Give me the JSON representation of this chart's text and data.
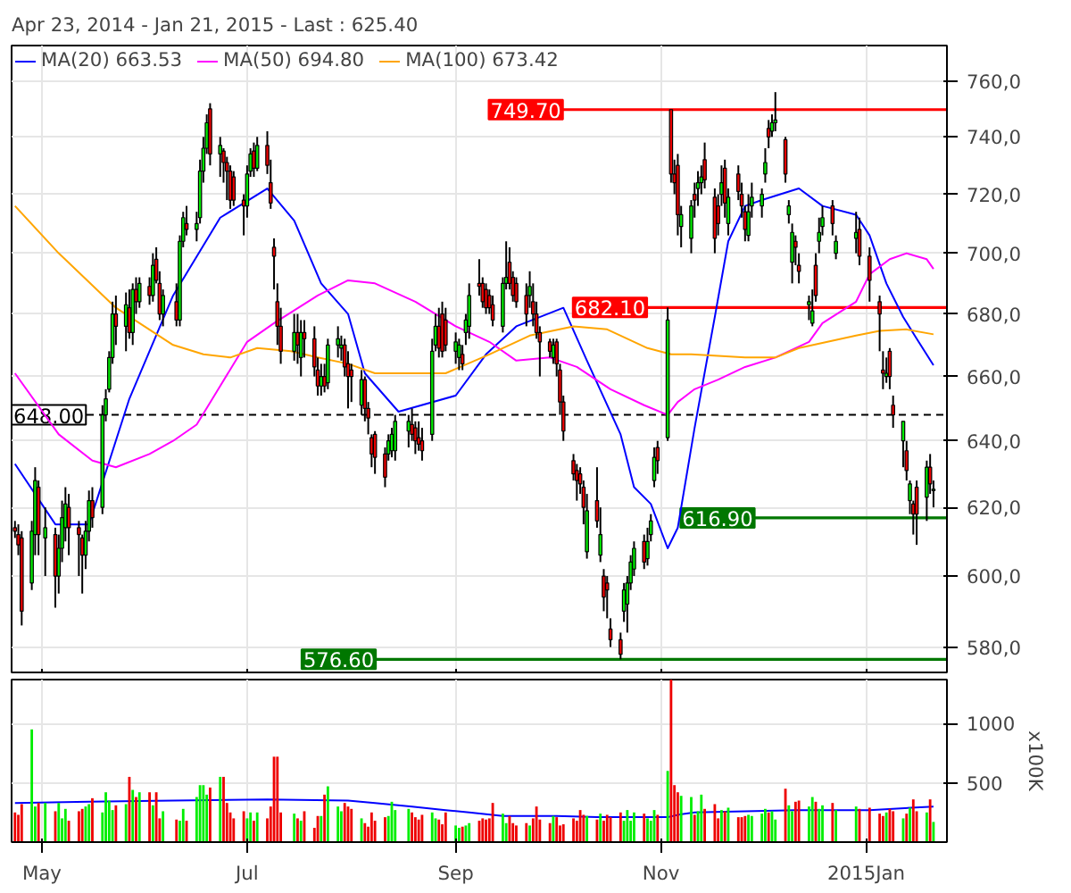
{
  "chart_data": [
    {
      "type": "candlestick",
      "title": "Apr 23, 2014 - Jan 21, 2015 - Last : 625.40",
      "x": [
        "2014-04-23",
        "2014-04-24",
        "2014-04-25",
        "2014-04-28",
        "2014-04-29",
        "2014-04-30",
        "2014-05-02",
        "2014-05-05",
        "2014-05-06",
        "2014-05-07",
        "2014-05-08",
        "2014-05-09",
        "2014-05-12",
        "2014-05-13",
        "2014-05-14",
        "2014-05-15",
        "2014-05-16",
        "2014-05-19",
        "2014-05-20",
        "2014-05-21",
        "2014-05-22",
        "2014-05-23",
        "2014-05-26",
        "2014-05-27",
        "2014-05-28",
        "2014-05-29",
        "2014-05-30",
        "2014-06-02",
        "2014-06-03",
        "2014-06-04",
        "2014-06-05",
        "2014-06-06",
        "2014-06-10",
        "2014-06-11",
        "2014-06-12",
        "2014-06-13",
        "2014-06-16",
        "2014-06-17",
        "2014-06-18",
        "2014-06-19",
        "2014-06-20",
        "2014-06-23",
        "2014-06-24",
        "2014-06-25",
        "2014-06-26",
        "2014-06-27",
        "2014-06-30",
        "2014-07-01",
        "2014-07-02",
        "2014-07-03",
        "2014-07-04",
        "2014-07-07",
        "2014-07-08",
        "2014-07-09",
        "2014-07-10",
        "2014-07-11",
        "2014-07-15",
        "2014-07-16",
        "2014-07-17",
        "2014-07-18",
        "2014-07-21",
        "2014-07-22",
        "2014-07-23",
        "2014-07-24",
        "2014-07-25",
        "2014-07-28",
        "2014-07-29",
        "2014-07-30",
        "2014-07-31",
        "2014-08-01",
        "2014-08-04",
        "2014-08-05",
        "2014-08-06",
        "2014-08-07",
        "2014-08-08",
        "2014-08-11",
        "2014-08-12",
        "2014-08-13",
        "2014-08-14",
        "2014-08-18",
        "2014-08-19",
        "2014-08-20",
        "2014-08-21",
        "2014-08-22",
        "2014-08-25",
        "2014-08-26",
        "2014-08-27",
        "2014-08-28",
        "2014-08-29",
        "2014-09-01",
        "2014-09-02",
        "2014-09-03",
        "2014-09-04",
        "2014-09-05",
        "2014-09-08",
        "2014-09-09",
        "2014-09-10",
        "2014-09-11",
        "2014-09-12",
        "2014-09-15",
        "2014-09-16",
        "2014-09-17",
        "2014-09-18",
        "2014-09-19",
        "2014-09-22",
        "2014-09-23",
        "2014-09-24",
        "2014-09-25",
        "2014-09-26",
        "2014-09-29",
        "2014-09-30",
        "2014-10-01",
        "2014-10-02",
        "2014-10-03",
        "2014-10-06",
        "2014-10-07",
        "2014-10-08",
        "2014-10-09",
        "2014-10-10",
        "2014-10-13",
        "2014-10-14",
        "2014-10-15",
        "2014-10-16",
        "2014-10-17",
        "2014-10-20",
        "2014-10-21",
        "2014-10-22",
        "2014-10-23",
        "2014-10-24",
        "2014-10-27",
        "2014-10-28",
        "2014-10-29",
        "2014-10-30",
        "2014-10-31",
        "2014-11-03",
        "2014-11-04",
        "2014-11-05",
        "2014-11-06",
        "2014-11-07",
        "2014-11-10",
        "2014-11-11",
        "2014-11-12",
        "2014-11-13",
        "2014-11-14",
        "2014-11-17",
        "2014-11-18",
        "2014-11-19",
        "2014-11-20",
        "2014-11-21",
        "2014-11-24",
        "2014-11-25",
        "2014-11-26",
        "2014-11-27",
        "2014-11-28",
        "2014-12-01",
        "2014-12-02",
        "2014-12-03",
        "2014-12-04",
        "2014-12-05",
        "2014-12-08",
        "2014-12-09",
        "2014-12-10",
        "2014-12-11",
        "2014-12-12",
        "2014-12-15",
        "2014-12-16",
        "2014-12-17",
        "2014-12-18",
        "2014-12-19",
        "2014-12-22",
        "2014-12-23",
        "2014-12-29",
        "2014-12-30",
        "2015-01-02",
        "2015-01-05",
        "2015-01-06",
        "2015-01-07",
        "2015-01-08",
        "2015-01-09",
        "2015-01-12",
        "2015-01-13",
        "2015-01-14",
        "2015-01-15",
        "2015-01-16",
        "2015-01-19",
        "2015-01-20",
        "2015-01-21"
      ],
      "ohlc": [
        [
          614,
          616,
          611,
          613
        ],
        [
          612,
          615,
          606,
          609
        ],
        [
          611,
          613,
          586,
          590
        ],
        [
          598,
          616,
          596,
          613
        ],
        [
          612,
          632,
          606,
          628
        ],
        [
          626,
          628,
          606,
          612
        ],
        [
          611,
          620,
          600,
          614
        ],
        [
          612,
          614,
          591,
          600
        ],
        [
          600,
          612,
          595,
          608
        ],
        [
          608,
          622,
          604,
          617
        ],
        [
          614,
          626,
          610,
          621
        ],
        [
          620,
          624,
          606,
          614
        ],
        [
          614,
          616,
          600,
          612
        ],
        [
          611,
          612,
          595,
          606
        ],
        [
          606,
          616,
          602,
          613
        ],
        [
          613,
          625,
          610,
          622
        ],
        [
          622,
          626,
          614,
          617
        ],
        [
          620,
          651,
          618,
          648
        ],
        [
          648,
          656,
          646,
          653
        ],
        [
          656,
          668,
          655,
          666
        ],
        [
          666,
          684,
          664,
          680
        ],
        [
          680,
          686,
          670,
          676
        ],
        [
          676,
          687,
          668,
          683
        ],
        [
          682,
          688,
          672,
          674
        ],
        [
          674,
          690,
          670,
          688
        ],
        [
          688,
          692,
          680,
          684
        ],
        [
          684,
          692,
          682,
          690
        ],
        [
          689,
          692,
          683,
          686
        ],
        [
          686,
          700,
          684,
          696
        ],
        [
          698,
          702,
          690,
          691
        ],
        [
          690,
          694,
          678,
          680
        ],
        [
          680,
          688,
          676,
          686
        ],
        [
          684,
          690,
          676,
          678
        ],
        [
          678,
          706,
          676,
          704
        ],
        [
          704,
          714,
          702,
          712
        ],
        [
          710,
          716,
          706,
          708
        ],
        [
          708,
          714,
          704,
          710
        ],
        [
          712,
          732,
          710,
          728
        ],
        [
          728,
          740,
          724,
          736
        ],
        [
          736,
          748,
          734,
          745
        ],
        [
          750,
          752,
          730,
          734
        ],
        [
          734,
          740,
          726,
          737
        ],
        [
          735,
          736,
          724,
          731
        ],
        [
          731,
          733,
          718,
          728
        ],
        [
          728,
          730,
          715,
          718
        ],
        [
          726,
          728,
          716,
          718
        ],
        [
          718,
          720,
          706,
          716
        ],
        [
          716,
          730,
          712,
          727
        ],
        [
          728,
          736,
          726,
          734
        ],
        [
          735,
          738,
          726,
          729
        ],
        [
          729,
          740,
          728,
          737
        ],
        [
          737,
          742,
          727,
          730
        ],
        [
          724,
          732,
          715,
          717
        ],
        [
          702,
          705,
          688,
          699
        ],
        [
          684,
          690,
          670,
          676
        ],
        [
          676,
          682,
          664,
          668
        ],
        [
          668,
          680,
          665,
          674
        ],
        [
          674,
          680,
          664,
          670
        ],
        [
          666,
          678,
          660,
          674
        ],
        [
          674,
          678,
          666,
          672
        ],
        [
          672,
          676,
          660,
          663
        ],
        [
          662,
          666,
          654,
          657
        ],
        [
          657,
          664,
          654,
          660
        ],
        [
          660,
          664,
          655,
          657
        ],
        [
          658,
          672,
          656,
          670
        ],
        [
          670,
          676,
          666,
          672
        ],
        [
          669,
          673,
          665,
          670
        ],
        [
          670,
          672,
          660,
          663
        ],
        [
          664,
          668,
          650,
          660
        ],
        [
          662,
          664,
          652,
          660
        ],
        [
          651,
          662,
          648,
          659
        ],
        [
          659,
          660,
          646,
          650
        ],
        [
          650,
          652,
          642,
          647
        ],
        [
          641,
          642,
          632,
          636
        ],
        [
          642,
          643,
          630,
          635
        ],
        [
          636,
          638,
          626,
          629
        ],
        [
          636,
          642,
          634,
          640
        ],
        [
          637,
          644,
          635,
          642
        ],
        [
          637,
          648,
          634,
          646
        ],
        [
          643,
          648,
          638,
          646
        ],
        [
          645,
          650,
          640,
          642
        ],
        [
          644,
          646,
          636,
          640
        ],
        [
          641,
          646,
          637,
          639
        ],
        [
          640,
          644,
          634,
          637
        ],
        [
          642,
          672,
          640,
          668
        ],
        [
          670,
          680,
          668,
          676
        ],
        [
          676,
          682,
          666,
          669
        ],
        [
          680,
          684,
          666,
          668
        ],
        [
          678,
          682,
          668,
          670
        ],
        [
          668,
          674,
          664,
          671
        ],
        [
          666,
          672,
          662,
          670
        ],
        [
          667,
          670,
          662,
          664
        ],
        [
          674,
          680,
          670,
          678
        ],
        [
          676,
          690,
          672,
          686
        ],
        [
          690,
          698,
          686,
          689
        ],
        [
          690,
          692,
          682,
          684
        ],
        [
          688,
          690,
          680,
          682
        ],
        [
          686,
          688,
          680,
          682
        ],
        [
          683,
          686,
          676,
          678
        ],
        [
          676,
          692,
          674,
          690
        ],
        [
          690,
          704,
          688,
          692
        ],
        [
          697,
          702,
          688,
          690
        ],
        [
          692,
          694,
          684,
          686
        ],
        [
          690,
          692,
          682,
          684
        ],
        [
          686,
          690,
          676,
          680
        ],
        [
          686,
          694,
          682,
          689
        ],
        [
          684,
          690,
          676,
          680
        ],
        [
          680,
          684,
          672,
          674
        ],
        [
          674,
          676,
          660,
          671
        ],
        [
          671,
          672,
          666,
          668
        ],
        [
          666,
          672,
          664,
          670
        ],
        [
          671,
          672,
          660,
          664
        ],
        [
          662,
          664,
          648,
          652
        ],
        [
          652,
          654,
          640,
          643
        ],
        [
          634,
          636,
          628,
          630
        ],
        [
          631,
          633,
          622,
          628
        ],
        [
          630,
          632,
          624,
          627
        ],
        [
          626,
          628,
          615,
          620
        ],
        [
          607,
          624,
          605,
          619
        ],
        [
          622,
          632,
          614,
          616
        ],
        [
          606,
          620,
          604,
          612
        ],
        [
          600,
          602,
          590,
          594
        ],
        [
          598,
          600,
          588,
          596
        ],
        [
          585,
          588,
          580,
          582
        ],
        [
          582,
          584,
          576.6,
          578
        ],
        [
          590,
          598,
          587,
          596
        ],
        [
          592,
          600,
          584,
          598
        ],
        [
          598,
          606,
          596,
          604
        ],
        [
          602,
          610,
          600,
          608
        ],
        [
          610,
          612,
          602,
          604
        ],
        [
          605,
          614,
          603,
          610
        ],
        [
          612,
          618,
          610,
          616
        ],
        [
          628,
          638,
          626,
          635
        ],
        [
          638,
          640,
          630,
          634
        ],
        [
          641,
          682.1,
          640,
          678
        ],
        [
          749.7,
          749.7,
          724,
          727
        ],
        [
          727,
          732,
          720,
          724
        ],
        [
          730,
          734,
          706,
          713
        ],
        [
          709,
          716,
          702,
          713
        ],
        [
          705,
          718,
          700,
          716
        ],
        [
          720,
          724,
          712,
          718
        ],
        [
          722,
          728,
          716,
          724
        ],
        [
          724,
          730,
          720,
          726
        ],
        [
          732,
          738,
          722,
          725
        ],
        [
          719,
          722,
          700,
          705
        ],
        [
          716,
          720,
          706,
          710
        ],
        [
          720,
          730,
          716,
          724
        ],
        [
          729,
          732,
          712,
          717
        ],
        [
          710,
          722,
          706,
          719
        ],
        [
          727,
          730,
          718,
          721
        ],
        [
          720,
          724,
          712,
          716
        ],
        [
          714,
          716,
          704,
          708
        ],
        [
          706,
          720,
          704,
          714
        ],
        [
          716,
          724,
          712,
          719
        ],
        [
          716,
          722,
          712,
          720
        ],
        [
          727,
          736,
          724,
          731
        ],
        [
          743,
          746,
          736,
          740
        ],
        [
          742,
          748,
          740,
          745
        ],
        [
          745,
          756,
          742,
          746
        ],
        [
          739,
          740,
          724,
          727
        ],
        [
          713,
          718,
          710,
          716
        ],
        [
          697,
          710,
          690,
          707
        ],
        [
          704,
          706,
          696,
          702
        ],
        [
          696,
          700,
          690,
          694
        ],
        [
          683,
          686,
          678,
          684
        ],
        [
          677,
          688,
          676,
          681
        ],
        [
          696,
          700,
          684,
          686
        ],
        [
          704,
          712,
          700,
          707
        ],
        [
          709,
          716,
          706,
          712
        ],
        [
          716,
          718,
          706,
          710
        ],
        [
          700,
          706,
          698,
          704
        ],
        [
          705,
          714,
          700,
          707
        ],
        [
          708,
          712,
          696,
          699
        ],
        [
          699,
          702,
          684,
          691
        ],
        [
          684,
          686,
          668,
          680
        ],
        [
          662,
          668,
          656,
          661
        ],
        [
          660,
          666,
          658,
          661
        ],
        [
          668,
          669,
          656,
          660
        ],
        [
          651,
          654,
          644,
          648
        ],
        [
          640,
          646,
          632,
          646
        ],
        [
          637,
          640,
          628,
          631
        ],
        [
          622,
          628,
          618,
          627
        ],
        [
          621,
          622,
          612,
          618
        ],
        [
          626,
          628,
          609,
          618
        ],
        [
          623,
          634,
          616,
          632
        ],
        [
          632,
          636,
          624,
          627
        ],
        [
          625,
          628,
          620,
          625.4
        ]
      ],
      "series": [
        {
          "name": "MA(20) 663.53",
          "type": "line",
          "color": "#0000ff",
          "x": [
            "2014-04-23",
            "2014-05-05",
            "2014-05-15",
            "2014-05-27",
            "2014-06-09",
            "2014-06-23",
            "2014-07-07",
            "2014-07-15",
            "2014-07-23",
            "2014-07-31",
            "2014-08-05",
            "2014-08-15",
            "2014-09-01",
            "2014-09-10",
            "2014-09-19",
            "2014-10-03",
            "2014-10-10",
            "2014-10-20",
            "2014-10-24",
            "2014-10-29",
            "2014-11-03",
            "2014-11-06",
            "2014-11-11",
            "2014-11-17",
            "2014-11-21",
            "2014-11-26",
            "2014-12-01",
            "2014-12-12",
            "2014-12-19",
            "2014-12-29",
            "2015-01-02",
            "2015-01-07",
            "2015-01-12",
            "2015-01-16",
            "2015-01-21"
          ],
          "values": [
            633,
            615,
            615,
            653,
            686,
            712,
            722,
            711,
            690,
            680,
            661,
            649,
            654,
            667,
            676,
            682,
            665,
            642,
            626,
            621,
            608,
            614,
            644,
            679,
            704,
            716,
            718,
            722,
            716,
            713,
            706,
            690,
            679,
            672,
            663.53
          ]
        },
        {
          "name": "MA(50) 694.80",
          "type": "line",
          "color": "#ff00ff",
          "x": [
            "2014-04-23",
            "2014-05-06",
            "2014-05-16",
            "2014-05-23",
            "2014-06-02",
            "2014-06-09",
            "2014-06-16",
            "2014-06-23",
            "2014-07-01",
            "2014-07-09",
            "2014-07-22",
            "2014-07-31",
            "2014-08-08",
            "2014-08-20",
            "2014-09-01",
            "2014-09-11",
            "2014-09-19",
            "2014-09-29",
            "2014-10-07",
            "2014-10-17",
            "2014-10-27",
            "2014-11-03",
            "2014-11-06",
            "2014-11-11",
            "2014-11-18",
            "2014-11-26",
            "2014-12-05",
            "2014-12-15",
            "2014-12-19",
            "2014-12-29",
            "2015-01-02",
            "2015-01-08",
            "2015-01-13",
            "2015-01-19",
            "2015-01-21"
          ],
          "values": [
            661,
            642,
            634,
            632,
            636,
            640,
            645,
            657,
            671,
            677,
            686,
            691,
            690,
            684,
            676,
            671,
            665,
            666,
            663,
            656,
            651,
            648,
            652,
            656,
            659,
            663,
            666,
            671,
            677,
            684,
            693,
            698,
            700,
            698,
            694.8
          ]
        },
        {
          "name": "MA(100) 673.42",
          "type": "line",
          "color": "#ffa500",
          "x": [
            "2014-04-23",
            "2014-05-06",
            "2014-05-23",
            "2014-06-09",
            "2014-06-18",
            "2014-06-26",
            "2014-07-04",
            "2014-07-14",
            "2014-07-22",
            "2014-07-31",
            "2014-08-08",
            "2014-08-29",
            "2014-09-11",
            "2014-09-23",
            "2014-10-06",
            "2014-10-16",
            "2014-10-28",
            "2014-11-04",
            "2014-11-10",
            "2014-11-26",
            "2014-12-05",
            "2014-12-12",
            "2014-12-29",
            "2015-01-05",
            "2015-01-13",
            "2015-01-21"
          ],
          "values": [
            716,
            700,
            682,
            670,
            667,
            666,
            669,
            668,
            666,
            664,
            661,
            661,
            667,
            673,
            676,
            675,
            669,
            667,
            667,
            666,
            666,
            669,
            673,
            674.5,
            675,
            673.42
          ]
        }
      ],
      "xlim": [
        "2014-04-22",
        "2015-01-25"
      ],
      "xticks": [
        {
          "value": "2014-05-01",
          "label": null
        },
        {
          "value": "2014-07-01",
          "label": null
        },
        {
          "value": "2014-09-01",
          "label": null
        },
        {
          "value": "2014-11-01",
          "label": null
        },
        {
          "value": "2015-01-01",
          "label": null
        }
      ],
      "ylim": [
        573,
        773
      ],
      "log": "y",
      "yticks": [
        {
          "value": 580,
          "label": "580,0"
        },
        {
          "value": 600,
          "label": "600,0"
        },
        {
          "value": 620,
          "label": "620,0"
        },
        {
          "value": 640,
          "label": "640,0"
        },
        {
          "value": 660,
          "label": "660,0"
        },
        {
          "value": 680,
          "label": "680,0"
        },
        {
          "value": 700,
          "label": "700,0"
        },
        {
          "value": 720,
          "label": "720,0"
        },
        {
          "value": 740,
          "label": "740,0"
        },
        {
          "value": 760,
          "label": "760,0"
        }
      ],
      "ref_lines": [
        {
          "axis": "y",
          "value": 648,
          "label": "648.00",
          "color": "#000000",
          "line_style": "dashed"
        },
        {
          "axis": "y",
          "value": 749.7,
          "label": "749.70",
          "color": "#ff0000"
        },
        {
          "axis": "y",
          "value": 682.1,
          "label": "682.10",
          "color": "#ff0000"
        },
        {
          "axis": "y",
          "value": 616.9,
          "label": "616.90",
          "color": "#007700"
        },
        {
          "axis": "y",
          "value": 576.6,
          "label": "576.60",
          "color": "#007700"
        }
      ],
      "grid": true,
      "legend": "top left",
      "tick_labels": "y"
    },
    {
      "type": "bar",
      "ylabel": "x100K",
      "x": [
        "2014-04-23",
        "2014-04-24",
        "2014-04-25",
        "2014-04-28",
        "2014-04-29",
        "2014-04-30",
        "2014-05-02",
        "2014-05-05",
        "2014-05-06",
        "2014-05-07",
        "2014-05-08",
        "2014-05-09",
        "2014-05-12",
        "2014-05-13",
        "2014-05-14",
        "2014-05-15",
        "2014-05-16",
        "2014-05-19",
        "2014-05-20",
        "2014-05-21",
        "2014-05-22",
        "2014-05-23",
        "2014-05-26",
        "2014-05-27",
        "2014-05-28",
        "2014-05-29",
        "2014-05-30",
        "2014-06-02",
        "2014-06-03",
        "2014-06-04",
        "2014-06-05",
        "2014-06-06",
        "2014-06-10",
        "2014-06-11",
        "2014-06-12",
        "2014-06-13",
        "2014-06-16",
        "2014-06-17",
        "2014-06-18",
        "2014-06-19",
        "2014-06-20",
        "2014-06-23",
        "2014-06-24",
        "2014-06-25",
        "2014-06-26",
        "2014-06-27",
        "2014-06-30",
        "2014-07-01",
        "2014-07-02",
        "2014-07-03",
        "2014-07-04",
        "2014-07-07",
        "2014-07-08",
        "2014-07-09",
        "2014-07-10",
        "2014-07-11",
        "2014-07-15",
        "2014-07-16",
        "2014-07-17",
        "2014-07-18",
        "2014-07-21",
        "2014-07-22",
        "2014-07-23",
        "2014-07-24",
        "2014-07-25",
        "2014-07-28",
        "2014-07-29",
        "2014-07-30",
        "2014-07-31",
        "2014-08-01",
        "2014-08-04",
        "2014-08-05",
        "2014-08-06",
        "2014-08-07",
        "2014-08-08",
        "2014-08-11",
        "2014-08-12",
        "2014-08-13",
        "2014-08-14",
        "2014-08-18",
        "2014-08-19",
        "2014-08-20",
        "2014-08-21",
        "2014-08-22",
        "2014-08-25",
        "2014-08-26",
        "2014-08-27",
        "2014-08-28",
        "2014-08-29",
        "2014-09-01",
        "2014-09-02",
        "2014-09-03",
        "2014-09-04",
        "2014-09-05",
        "2014-09-08",
        "2014-09-09",
        "2014-09-10",
        "2014-09-11",
        "2014-09-12",
        "2014-09-15",
        "2014-09-16",
        "2014-09-17",
        "2014-09-18",
        "2014-09-19",
        "2014-09-22",
        "2014-09-23",
        "2014-09-24",
        "2014-09-25",
        "2014-09-26",
        "2014-09-29",
        "2014-09-30",
        "2014-10-01",
        "2014-10-02",
        "2014-10-03",
        "2014-10-06",
        "2014-10-07",
        "2014-10-08",
        "2014-10-09",
        "2014-10-10",
        "2014-10-13",
        "2014-10-14",
        "2014-10-15",
        "2014-10-16",
        "2014-10-17",
        "2014-10-20",
        "2014-10-21",
        "2014-10-22",
        "2014-10-23",
        "2014-10-24",
        "2014-10-27",
        "2014-10-28",
        "2014-10-29",
        "2014-10-30",
        "2014-10-31",
        "2014-11-03",
        "2014-11-04",
        "2014-11-05",
        "2014-11-06",
        "2014-11-07",
        "2014-11-10",
        "2014-11-11",
        "2014-11-12",
        "2014-11-13",
        "2014-11-14",
        "2014-11-17",
        "2014-11-18",
        "2014-11-19",
        "2014-11-20",
        "2014-11-21",
        "2014-11-24",
        "2014-11-25",
        "2014-11-26",
        "2014-11-27",
        "2014-11-28",
        "2014-12-01",
        "2014-12-02",
        "2014-12-03",
        "2014-12-04",
        "2014-12-05",
        "2014-12-08",
        "2014-12-09",
        "2014-12-10",
        "2014-12-11",
        "2014-12-12",
        "2014-12-15",
        "2014-12-16",
        "2014-12-17",
        "2014-12-18",
        "2014-12-19",
        "2014-12-22",
        "2014-12-23",
        "2014-12-29",
        "2014-12-30",
        "2015-01-02",
        "2015-01-05",
        "2015-01-06",
        "2015-01-07",
        "2015-01-08",
        "2015-01-09",
        "2015-01-12",
        "2015-01-13",
        "2015-01-14",
        "2015-01-15",
        "2015-01-16",
        "2015-01-19",
        "2015-01-20",
        "2015-01-21"
      ],
      "values": [
        250,
        230,
        320,
        950,
        300,
        330,
        330,
        260,
        330,
        200,
        280,
        180,
        260,
        280,
        300,
        320,
        370,
        250,
        420,
        350,
        270,
        310,
        320,
        550,
        440,
        380,
        420,
        420,
        310,
        420,
        200,
        260,
        190,
        180,
        280,
        180,
        380,
        480,
        480,
        400,
        460,
        550,
        550,
        330,
        250,
        200,
        260,
        200,
        250,
        180,
        250,
        200,
        300,
        720,
        720,
        250,
        240,
        200,
        180,
        260,
        120,
        220,
        220,
        400,
        470,
        300,
        260,
        330,
        300,
        280,
        200,
        160,
        130,
        250,
        180,
        210,
        220,
        340,
        270,
        280,
        250,
        210,
        190,
        230,
        250,
        200,
        190,
        150,
        250,
        140,
        120,
        130,
        140,
        160,
        180,
        200,
        190,
        200,
        330,
        240,
        160,
        220,
        160,
        140,
        160,
        140,
        200,
        300,
        190,
        160,
        220,
        210,
        140,
        150,
        200,
        180,
        270,
        230,
        220,
        190,
        240,
        180,
        230,
        210,
        250,
        180,
        270,
        180,
        250,
        240,
        200,
        180,
        270,
        230,
        600,
        1370,
        480,
        420,
        390,
        380,
        230,
        260,
        400,
        280,
        320,
        200,
        270,
        260,
        290,
        210,
        210,
        220,
        230,
        220,
        240,
        280,
        250,
        260,
        190,
        450,
        310,
        260,
        340,
        350,
        300,
        380,
        340,
        280,
        310,
        330,
        270,
        300,
        280,
        290,
        240,
        220,
        250,
        280,
        260,
        200,
        240,
        290,
        360,
        260,
        250,
        360,
        170
      ],
      "colors": [
        "#ee0000",
        "#ee0000",
        "#ee0000",
        "#00ee00",
        "#00ee00",
        "#ee0000",
        "#00ee00",
        "#ee0000",
        "#00ee00",
        "#00ee00",
        "#00ee00",
        "#ee0000",
        "#ee0000",
        "#ee0000",
        "#00ee00",
        "#00ee00",
        "#ee0000",
        "#00ee00",
        "#00ee00",
        "#00ee00",
        "#00ee00",
        "#ee0000",
        "#00ee00",
        "#ee0000",
        "#00ee00",
        "#ee0000",
        "#00ee00",
        "#ee0000",
        "#00ee00",
        "#ee0000",
        "#ee0000",
        "#00ee00",
        "#ee0000",
        "#00ee00",
        "#00ee00",
        "#ee0000",
        "#00ee00",
        "#00ee00",
        "#00ee00",
        "#00ee00",
        "#ee0000",
        "#00ee00",
        "#ee0000",
        "#ee0000",
        "#ee0000",
        "#ee0000",
        "#ee0000",
        "#00ee00",
        "#00ee00",
        "#ee0000",
        "#00ee00",
        "#ee0000",
        "#ee0000",
        "#ee0000",
        "#ee0000",
        "#ee0000",
        "#00ee00",
        "#ee0000",
        "#00ee00",
        "#ee0000",
        "#ee0000",
        "#ee0000",
        "#00ee00",
        "#ee0000",
        "#00ee00",
        "#00ee00",
        "#00ee00",
        "#ee0000",
        "#ee0000",
        "#ee0000",
        "#00ee00",
        "#ee0000",
        "#ee0000",
        "#ee0000",
        "#ee0000",
        "#ee0000",
        "#00ee00",
        "#00ee00",
        "#00ee00",
        "#00ee00",
        "#ee0000",
        "#ee0000",
        "#ee0000",
        "#ee0000",
        "#00ee00",
        "#00ee00",
        "#ee0000",
        "#ee0000",
        "#ee0000",
        "#00ee00",
        "#00ee00",
        "#ee0000",
        "#00ee00",
        "#00ee00",
        "#ee0000",
        "#ee0000",
        "#ee0000",
        "#ee0000",
        "#ee0000",
        "#00ee00",
        "#00ee00",
        "#ee0000",
        "#ee0000",
        "#ee0000",
        "#ee0000",
        "#00ee00",
        "#ee0000",
        "#ee0000",
        "#ee0000",
        "#ee0000",
        "#00ee00",
        "#ee0000",
        "#ee0000",
        "#ee0000",
        "#ee0000",
        "#ee0000",
        "#ee0000",
        "#ee0000",
        "#00ee00",
        "#ee0000",
        "#00ee00",
        "#ee0000",
        "#ee0000",
        "#ee0000",
        "#ee0000",
        "#00ee00",
        "#00ee00",
        "#00ee00",
        "#00ee00",
        "#ee0000",
        "#00ee00",
        "#00ee00",
        "#00ee00",
        "#ee0000",
        "#00ee00",
        "#ee0000",
        "#ee0000",
        "#ee0000",
        "#00ee00",
        "#00ee00",
        "#ee0000",
        "#00ee00",
        "#00ee00",
        "#ee0000",
        "#ee0000",
        "#ee0000",
        "#00ee00",
        "#ee0000",
        "#00ee00",
        "#ee0000",
        "#ee0000",
        "#ee0000",
        "#00ee00",
        "#00ee00",
        "#00ee00",
        "#00ee00",
        "#ee0000",
        "#00ee00",
        "#00ee00",
        "#ee0000",
        "#00ee00",
        "#00ee00",
        "#ee0000",
        "#ee0000",
        "#00ee00",
        "#00ee00",
        "#ee0000",
        "#00ee00",
        "#00ee00",
        "#ee0000",
        "#00ee00",
        "#00ee00",
        "#ee0000",
        "#ee0000",
        "#ee0000",
        "#ee0000",
        "#00ee00",
        "#ee0000",
        "#ee0000",
        "#00ee00",
        "#ee0000",
        "#00ee00",
        "#ee0000",
        "#ee0000",
        "#00ee00",
        "#ee0000",
        "#00ee00"
      ],
      "series": [
        {
          "type": "line",
          "color": "#0000ff",
          "x": [
            "2014-04-23",
            "2014-05-15",
            "2014-06-09",
            "2014-07-07",
            "2014-07-31",
            "2014-08-08",
            "2014-08-19",
            "2014-08-29",
            "2014-09-05",
            "2014-09-15",
            "2014-10-01",
            "2014-10-13",
            "2014-11-03",
            "2014-11-06",
            "2014-11-11",
            "2014-12-11",
            "2015-01-02",
            "2015-01-21"
          ],
          "values": [
            330,
            340,
            350,
            360,
            350,
            330,
            300,
            270,
            250,
            220,
            220,
            210,
            210,
            230,
            250,
            270,
            270,
            300
          ]
        }
      ],
      "xlim": [
        "2014-04-22",
        "2015-01-25"
      ],
      "xticks": [
        {
          "value": "2014-05-01",
          "label": "May"
        },
        {
          "value": "2014-07-01",
          "label": "Jul"
        },
        {
          "value": "2014-09-01",
          "label": "Sep"
        },
        {
          "value": "2014-11-01",
          "label": "Nov"
        },
        {
          "value": "2015-01-01",
          "label": "2015Jan"
        }
      ],
      "ylim": [
        0,
        1370
      ],
      "yticks": [
        500,
        1000
      ],
      "grid": true
    }
  ]
}
